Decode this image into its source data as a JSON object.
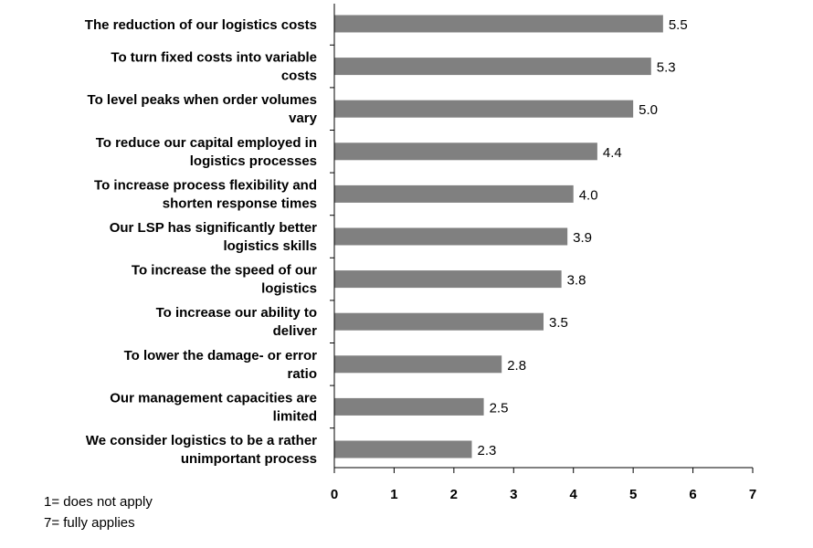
{
  "chart_data": {
    "type": "bar",
    "orientation": "horizontal",
    "categories": [
      [
        "The reduction of our logistics costs"
      ],
      [
        "To turn fixed costs into variable",
        "costs"
      ],
      [
        "To level peaks when order volumes",
        "vary"
      ],
      [
        "To reduce our capital employed in",
        "logistics processes"
      ],
      [
        "To increase process flexibility and",
        "shorten response times"
      ],
      [
        "Our LSP has significantly better",
        "logistics skills"
      ],
      [
        "To increase the speed of our",
        "logistics"
      ],
      [
        "To increase our ability to",
        "deliver"
      ],
      [
        "To lower the damage- or error",
        "ratio"
      ],
      [
        "Our management capacities are",
        "limited"
      ],
      [
        "We consider logistics to be a rather",
        "unimportant process"
      ]
    ],
    "values": [
      5.5,
      5.3,
      5.0,
      4.4,
      4.0,
      3.9,
      3.8,
      3.5,
      2.8,
      2.5,
      2.3
    ],
    "value_labels": [
      "5.5",
      "5.3",
      "5.0",
      "4.4",
      "4.0",
      "3.9",
      "3.8",
      "3.5",
      "2.8",
      "2.5",
      "2.3"
    ],
    "xlim": [
      0,
      7
    ],
    "xticks": [
      0,
      1,
      2,
      3,
      4,
      5,
      6,
      7
    ],
    "title": "",
    "xlabel": "",
    "ylabel": "",
    "grid": false,
    "bar_color": "#808080"
  },
  "notes": {
    "line1": "1= does not apply",
    "line2": "7= fully applies"
  }
}
